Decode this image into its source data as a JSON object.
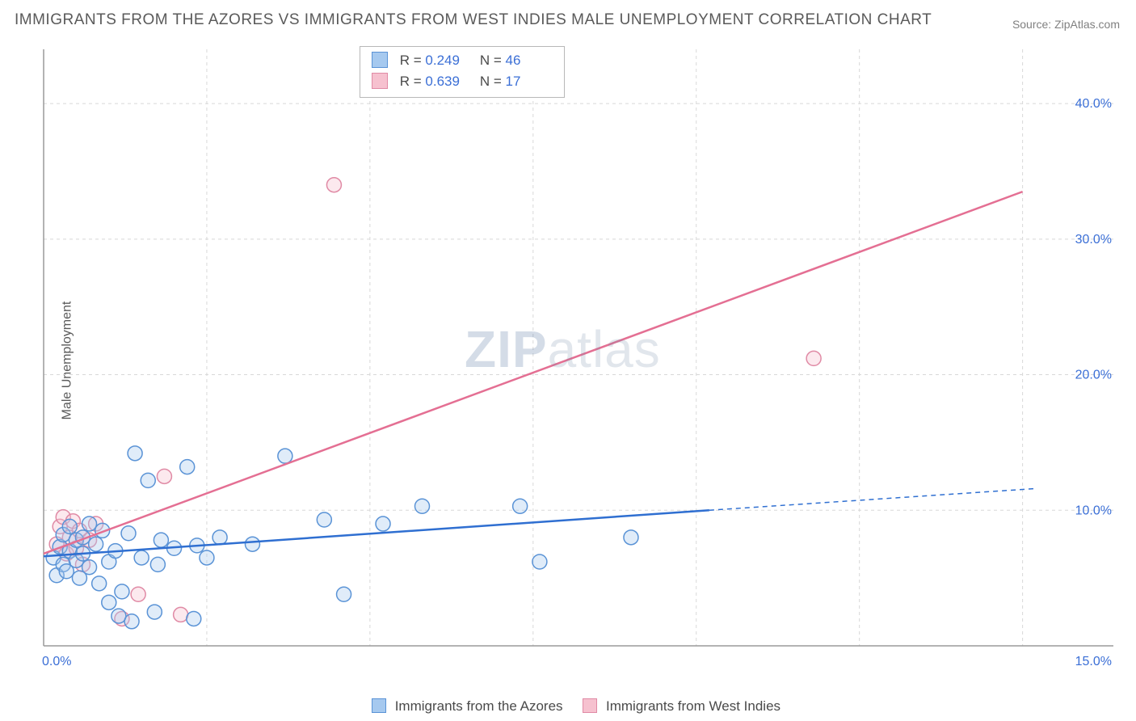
{
  "title": "IMMIGRANTS FROM THE AZORES VS IMMIGRANTS FROM WEST INDIES MALE UNEMPLOYMENT CORRELATION CHART",
  "source": "Source: ZipAtlas.com",
  "ylabel": "Male Unemployment",
  "watermark_bold": "ZIP",
  "watermark_light": "atlas",
  "chart": {
    "type": "scatter",
    "background_color": "#ffffff",
    "grid_color": "#d8d8d8",
    "axis_color": "#9a9a9a",
    "tick_label_color": "#3b6fd6",
    "tick_fontsize": 16,
    "y_ticks": [
      10.0,
      20.0,
      30.0,
      40.0
    ],
    "y_tick_labels": [
      "10.0%",
      "20.0%",
      "30.0%",
      "40.0%"
    ],
    "ylim": [
      0,
      44
    ],
    "x_tick_left": "0.0%",
    "x_tick_right": "15.0%",
    "xlim": [
      0,
      15.5
    ],
    "x_gridlines": [
      2.5,
      5.0,
      7.5,
      10.0,
      12.5,
      15.0
    ],
    "marker_radius": 9,
    "marker_stroke_width": 1.5,
    "marker_fill_opacity": 0.35,
    "series": [
      {
        "name": "Immigrants from the Azores",
        "fill": "#a6c9ef",
        "stroke": "#5a93d6",
        "line_color": "#2f6fd1",
        "line_width": 2.5,
        "trend": {
          "x1": 0.0,
          "y1": 6.6,
          "x2": 10.2,
          "y2": 10.0,
          "dash_x2": 15.2,
          "dash_y2": 11.6
        },
        "R": "0.249",
        "N": "46",
        "points": [
          [
            0.15,
            6.5
          ],
          [
            0.2,
            5.2
          ],
          [
            0.25,
            7.3
          ],
          [
            0.3,
            6.0
          ],
          [
            0.3,
            8.2
          ],
          [
            0.35,
            5.5
          ],
          [
            0.4,
            7.0
          ],
          [
            0.4,
            8.8
          ],
          [
            0.5,
            6.3
          ],
          [
            0.5,
            7.8
          ],
          [
            0.55,
            5.0
          ],
          [
            0.6,
            8.0
          ],
          [
            0.6,
            6.8
          ],
          [
            0.7,
            9.0
          ],
          [
            0.7,
            5.8
          ],
          [
            0.8,
            7.5
          ],
          [
            0.85,
            4.6
          ],
          [
            0.9,
            8.5
          ],
          [
            1.0,
            6.2
          ],
          [
            1.0,
            3.2
          ],
          [
            1.1,
            7.0
          ],
          [
            1.15,
            2.2
          ],
          [
            1.2,
            4.0
          ],
          [
            1.3,
            8.3
          ],
          [
            1.35,
            1.8
          ],
          [
            1.4,
            14.2
          ],
          [
            1.5,
            6.5
          ],
          [
            1.6,
            12.2
          ],
          [
            1.7,
            2.5
          ],
          [
            1.75,
            6.0
          ],
          [
            1.8,
            7.8
          ],
          [
            2.0,
            7.2
          ],
          [
            2.2,
            13.2
          ],
          [
            2.3,
            2.0
          ],
          [
            2.35,
            7.4
          ],
          [
            2.5,
            6.5
          ],
          [
            2.7,
            8.0
          ],
          [
            3.2,
            7.5
          ],
          [
            3.7,
            14.0
          ],
          [
            4.3,
            9.3
          ],
          [
            4.6,
            3.8
          ],
          [
            5.2,
            9.0
          ],
          [
            5.8,
            10.3
          ],
          [
            7.3,
            10.3
          ],
          [
            7.6,
            6.2
          ],
          [
            9.0,
            8.0
          ]
        ]
      },
      {
        "name": "Immigrants from West Indies",
        "fill": "#f6c1cf",
        "stroke": "#e08aa5",
        "line_color": "#e46f93",
        "line_width": 2.5,
        "trend": {
          "x1": 0.0,
          "y1": 6.8,
          "x2": 15.0,
          "y2": 33.5
        },
        "R": "0.639",
        "N": "17",
        "points": [
          [
            0.2,
            7.5
          ],
          [
            0.25,
            8.8
          ],
          [
            0.3,
            9.5
          ],
          [
            0.35,
            6.8
          ],
          [
            0.4,
            8.0
          ],
          [
            0.45,
            9.2
          ],
          [
            0.5,
            7.2
          ],
          [
            0.55,
            8.5
          ],
          [
            0.6,
            6.0
          ],
          [
            0.7,
            7.8
          ],
          [
            0.8,
            9.0
          ],
          [
            1.2,
            2.0
          ],
          [
            1.45,
            3.8
          ],
          [
            1.85,
            12.5
          ],
          [
            2.1,
            2.3
          ],
          [
            4.45,
            34.0
          ],
          [
            11.8,
            21.2
          ]
        ]
      }
    ]
  },
  "legend": {
    "series1_label": "Immigrants from the Azores",
    "series2_label": "Immigrants from West Indies"
  }
}
